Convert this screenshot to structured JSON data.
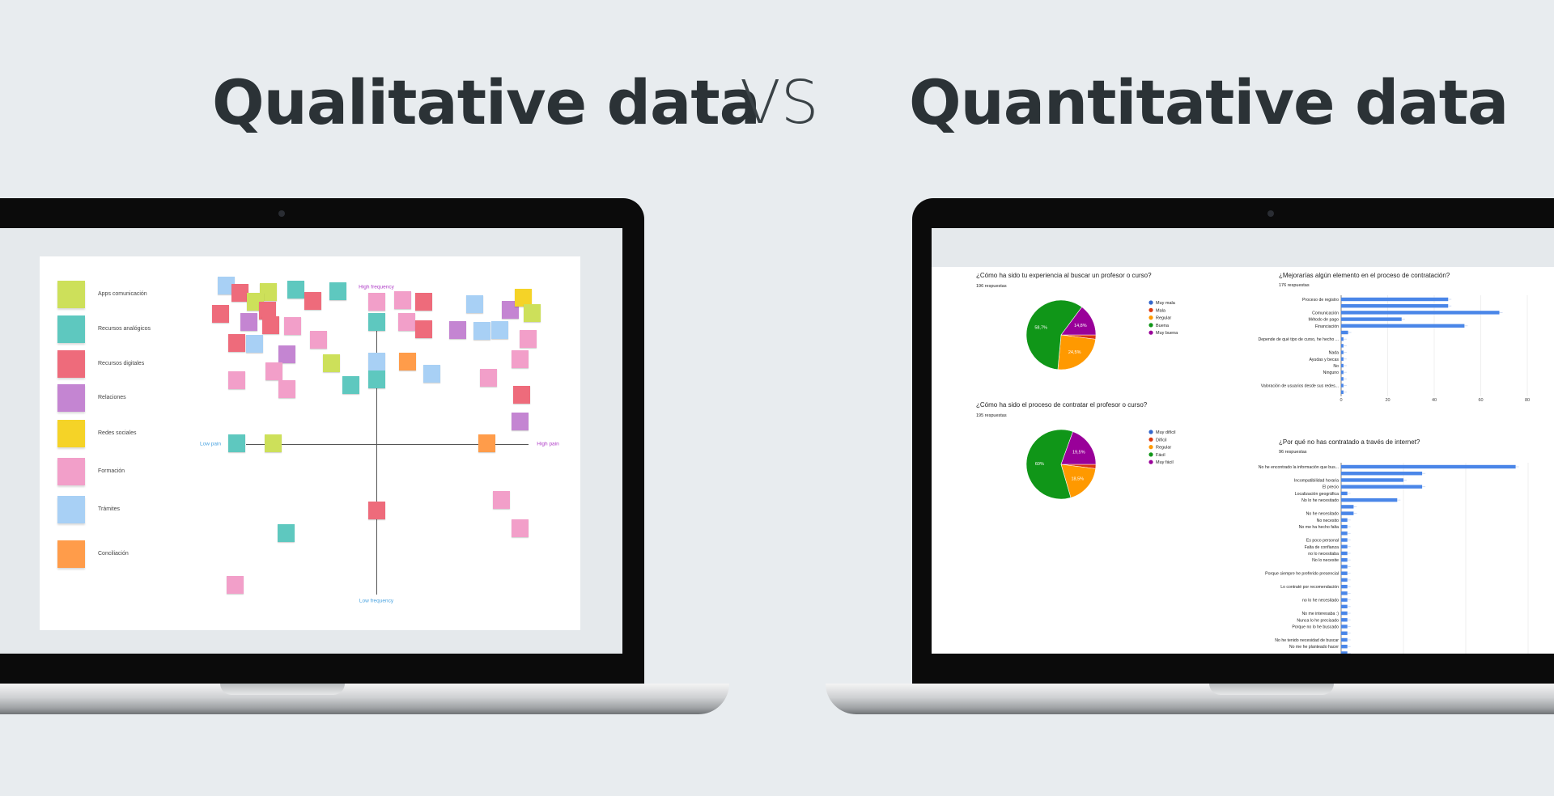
{
  "headline": {
    "left": "Qualitative data",
    "vs": "VS",
    "right": "Quantitative data"
  },
  "qualitative": {
    "legend": [
      {
        "label": "Apps comunicación",
        "color": "#cde05a"
      },
      {
        "label": "Recursos analógicos",
        "color": "#5ec8bf"
      },
      {
        "label": "Recursos digitales",
        "color": "#ee6b7b"
      },
      {
        "label": "Relaciones",
        "color": "#c485d2"
      },
      {
        "label": "Redes sociales",
        "color": "#f5d327"
      },
      {
        "label": "Formación",
        "color": "#f29fc9"
      },
      {
        "label": "Trámites",
        "color": "#a8d0f5"
      },
      {
        "label": "Conciliación",
        "color": "#ff9c4a"
      }
    ],
    "axes": {
      "top": "High frequency",
      "bottom": "Low frequency",
      "left": "Low pain",
      "right": "High pain"
    },
    "axis_label_colors": {
      "frequency": "#b040c8",
      "low_pain": "#4aa3e0",
      "high_pain": "#b040c8"
    }
  },
  "chart_data": [
    {
      "type": "pie",
      "title": "¿Cómo ha sido tu experiencia al buscar un profesor o curso?",
      "subtitle": "196 respuestas",
      "labels": [
        "Muy mala",
        "Mala",
        "Regular",
        "Buena",
        "Muy buena"
      ],
      "values": [
        0,
        2,
        24.5,
        58.7,
        14.8
      ],
      "data_labels": [
        "",
        "",
        "24,5%",
        "58,7%",
        "14,8%"
      ],
      "colors": [
        "#3366cc",
        "#dc3912",
        "#ff9900",
        "#109618",
        "#990099"
      ],
      "legend": "right"
    },
    {
      "type": "pie",
      "title": "¿Cómo ha sido el proceso de contratar el profesor o curso?",
      "subtitle": "195 respuestas",
      "labels": [
        "Muy difícil",
        "Difícil",
        "Regular",
        "Fácil",
        "Muy fácil"
      ],
      "values": [
        0,
        2,
        18.5,
        60,
        19.5
      ],
      "data_labels": [
        "",
        "",
        "18,5%",
        "60%",
        "19,5%"
      ],
      "colors": [
        "#3366cc",
        "#dc3912",
        "#ff9900",
        "#109618",
        "#990099"
      ],
      "legend": "right"
    },
    {
      "type": "bar",
      "orientation": "horizontal",
      "title": "¿Mejorarías algún elemento en el proceso de contratación?",
      "subtitle": "176 respuestas",
      "categories": [
        "Proceso de registro",
        "",
        "Comunicación",
        "Método de pago",
        "Financiación",
        "",
        "Depende de qué tipo de curso, he hecho ...",
        "",
        "Nada",
        "Ayudas y becas",
        "No",
        "Ninguno",
        "",
        "Valoración de usuarios desde sus redes...",
        ""
      ],
      "values": [
        46,
        46,
        68,
        26,
        53,
        3,
        1,
        1,
        1,
        1,
        1,
        1,
        1,
        1,
        1
      ],
      "xlim": [
        0,
        80
      ],
      "xticks": [
        "0",
        "20",
        "40",
        "60",
        "80"
      ],
      "grid": true,
      "color": "#4a86e8"
    },
    {
      "type": "bar",
      "orientation": "horizontal",
      "title": "¿Por qué no has contratado a través de internet?",
      "subtitle": "96 respuestas",
      "categories": [
        "No he encontrado la información que bus...",
        "",
        "Incompatibilidad horaria",
        "El precio",
        "Localización geográfica",
        "No lo he necesitado",
        "",
        "No he necesitado",
        "No necesito",
        "No me ha hecho falta",
        "",
        "Es poco personal",
        "Falta de confianza",
        "no lo necesitaba",
        "No lo necesite",
        "",
        "Porque siempre he preferido presencial",
        "",
        "Lo contraté por recomendación",
        "",
        "no lo he necesitado",
        "",
        "No me interesaba :)",
        "Nunca lo he precisado",
        "Porque no lo he buscado",
        "",
        "No he tenido necesidad de buscar",
        "No me he planteado hacer",
        ""
      ],
      "values": [
        28,
        13,
        10,
        13,
        1,
        9,
        2,
        2,
        1,
        1,
        1,
        1,
        1,
        1,
        1,
        1,
        1,
        1,
        1,
        1,
        1,
        1,
        1,
        1,
        1,
        1,
        1,
        1,
        1
      ],
      "xlim": [
        0,
        30
      ],
      "grid": true,
      "color": "#4a86e8"
    }
  ]
}
